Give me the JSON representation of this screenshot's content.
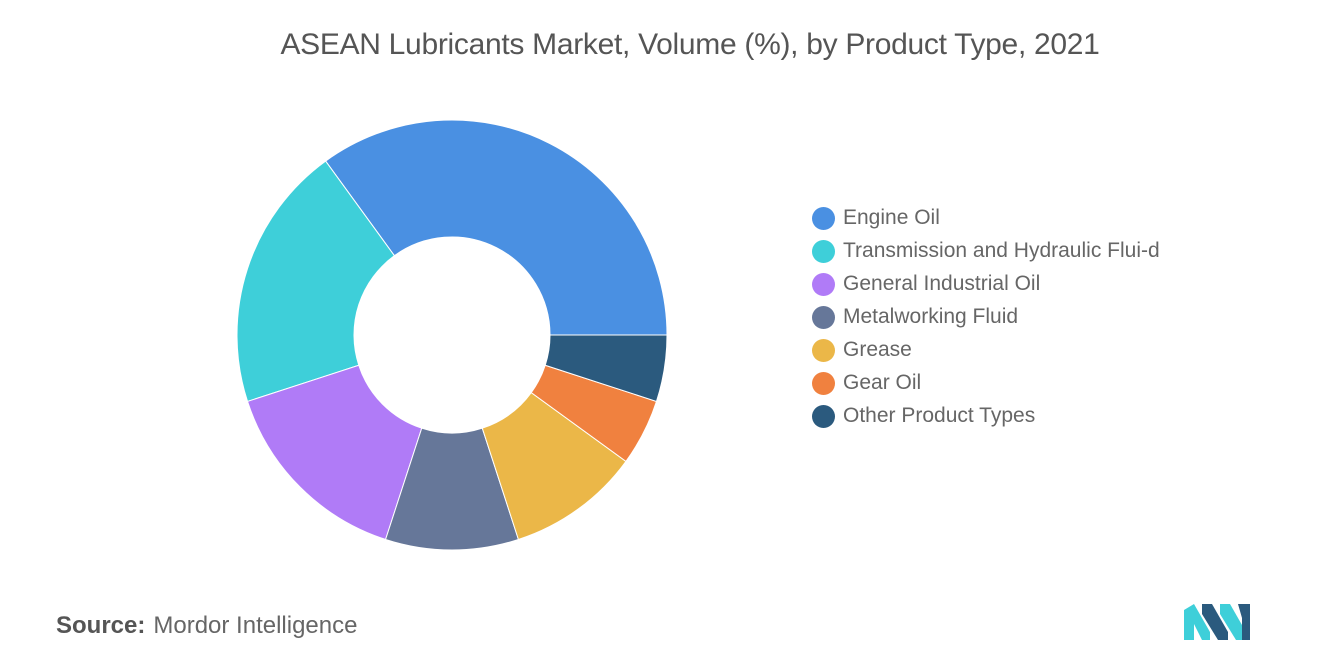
{
  "chart_data": {
    "type": "pie",
    "style": "donut",
    "title": "ASEAN Lubricants Market, Volume (%), by Product Type, 2021",
    "categories": [
      "Engine Oil",
      "Transmission and Hydraulic Fluid",
      "General Industrial Oil",
      "Metalworking Fluid",
      "Grease",
      "Gear Oil",
      "Other Product Types"
    ],
    "values": [
      35,
      20,
      15,
      10,
      10,
      5,
      5
    ],
    "colors": [
      "#4a90e2",
      "#3ecfd9",
      "#b07bf7",
      "#667799",
      "#ebb748",
      "#f0813f",
      "#2b5a7e"
    ],
    "legend_position": "right",
    "start_angle": "3 o'clock",
    "direction": "counterclockwise"
  },
  "legend": {
    "items": [
      "Engine Oil",
      "Transmission and Hydraulic Flui-d",
      "General Industrial Oil",
      "Metalworking Fluid",
      "Grease",
      "Gear Oil",
      "Other Product Types"
    ]
  },
  "source": {
    "label": "Source:",
    "text": "Mordor Intelligence"
  },
  "logo": {
    "icon": "mordor-intelligence-logo-icon",
    "colors": [
      "#3ecfd9",
      "#2b5a7e"
    ]
  }
}
